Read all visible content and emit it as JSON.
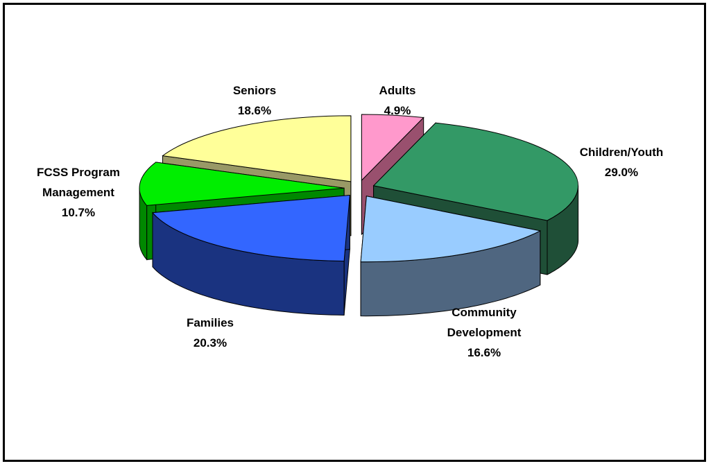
{
  "chart_data": {
    "type": "pie",
    "style": "exploded 3d",
    "title": "",
    "slices": [
      {
        "name": "Adults",
        "value": 4.9,
        "label": "4.9%",
        "color": "#FF99CC",
        "side_color": "#99506E"
      },
      {
        "name": "Children/Youth",
        "value": 29.0,
        "label": "29.0%",
        "color": "#339966",
        "side_color": "#1F4F37"
      },
      {
        "name": "Community Development",
        "name_lines": [
          "Community",
          "Development"
        ],
        "value": 16.6,
        "label": "16.6%",
        "color": "#99CCFF",
        "side_color": "#4F6680"
      },
      {
        "name": "Families",
        "value": 20.3,
        "label": "20.3%",
        "color": "#3366FF",
        "side_color": "#1A3380"
      },
      {
        "name": "FCSS Program Management",
        "name_lines": [
          "FCSS Program",
          "Management"
        ],
        "value": 10.7,
        "label": "10.7%",
        "color": "#00EE00",
        "side_color": "#008800"
      },
      {
        "name": "Seniors",
        "value": 18.6,
        "label": "18.6%",
        "color": "#FFFF99",
        "side_color": "#999966"
      }
    ],
    "legend": "none",
    "data_labels": "outside, name and percentage"
  }
}
